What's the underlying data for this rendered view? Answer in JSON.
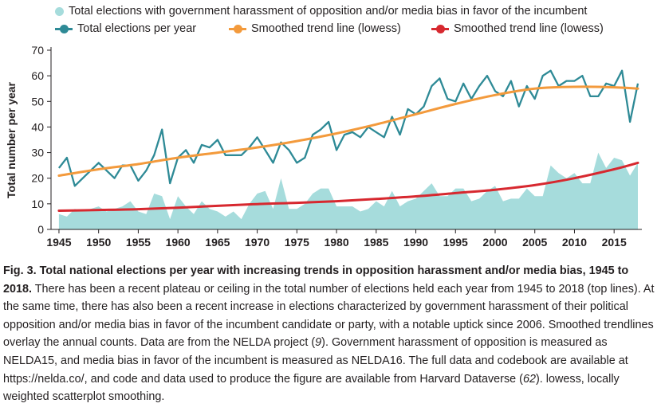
{
  "chart_data": {
    "type": "line",
    "ylabel": "Total number per year",
    "xlabel": "",
    "xlim": [
      1944,
      2018.5
    ],
    "ylim": [
      0,
      70
    ],
    "x_ticks": [
      1945,
      1950,
      1955,
      1960,
      1965,
      1970,
      1975,
      1980,
      1985,
      1990,
      1995,
      2000,
      2005,
      2010,
      2015
    ],
    "y_ticks": [
      0,
      10,
      20,
      30,
      40,
      50,
      60,
      70
    ],
    "legend": [
      {
        "label": "Total elections with government harassment of opposition and/or media bias in favor of the incumbent",
        "color": "#a6dcdc",
        "kind": "dot"
      },
      {
        "label": "Total elections per year",
        "color": "#2e8a96",
        "kind": "line-dot"
      },
      {
        "label": "Smoothed trend line (lowess)",
        "color": "#f39a3c",
        "kind": "line-dot"
      },
      {
        "label": "Smoothed trend line (lowess)",
        "color": "#d7282f",
        "kind": "line-dot"
      }
    ],
    "years": [
      1945,
      1946,
      1947,
      1948,
      1949,
      1950,
      1951,
      1952,
      1953,
      1954,
      1955,
      1956,
      1957,
      1958,
      1959,
      1960,
      1961,
      1962,
      1963,
      1964,
      1965,
      1966,
      1967,
      1968,
      1969,
      1970,
      1971,
      1972,
      1973,
      1974,
      1975,
      1976,
      1977,
      1978,
      1979,
      1980,
      1981,
      1982,
      1983,
      1984,
      1985,
      1986,
      1987,
      1988,
      1989,
      1990,
      1991,
      1992,
      1993,
      1994,
      1995,
      1996,
      1997,
      1998,
      1999,
      2000,
      2001,
      2002,
      2003,
      2004,
      2005,
      2006,
      2007,
      2008,
      2009,
      2010,
      2011,
      2012,
      2013,
      2014,
      2015,
      2016,
      2017,
      2018
    ],
    "series": [
      {
        "name": "Total elections per year",
        "color": "#2e8a96",
        "kind": "line",
        "values": [
          24,
          28,
          17,
          20,
          23,
          26,
          23,
          20,
          25,
          25,
          19,
          23,
          29,
          39,
          18,
          28,
          31,
          26,
          33,
          32,
          35,
          29,
          29,
          29,
          32,
          36,
          31,
          26,
          34,
          31,
          26,
          28,
          37,
          39,
          42,
          31,
          37,
          38,
          36,
          40,
          38,
          36,
          44,
          37,
          47,
          45,
          48,
          56,
          59,
          51,
          50,
          57,
          51,
          56,
          60,
          54,
          52,
          58,
          48,
          56,
          51,
          60,
          62,
          56,
          58,
          58,
          60,
          52,
          52,
          57,
          56,
          62,
          42,
          57
        ]
      },
      {
        "name": "Total elections with government harassment of opposition and/or media bias in favor of the incumbent",
        "color": "#a6dcdc",
        "kind": "area",
        "values": [
          6,
          5,
          8,
          7,
          8,
          9,
          7,
          8,
          9,
          11,
          7,
          6,
          14,
          13,
          4,
          13,
          9,
          6,
          11,
          8,
          7,
          5,
          7,
          4,
          10,
          14,
          15,
          8,
          20,
          8,
          8,
          10,
          14,
          16,
          16,
          9,
          9,
          9,
          7,
          8,
          11,
          9,
          15,
          9,
          11,
          12,
          15,
          18,
          13,
          13,
          16,
          16,
          11,
          12,
          15,
          17,
          11,
          12,
          12,
          16,
          13,
          13,
          25,
          22,
          20,
          22,
          18,
          18,
          30,
          24,
          28,
          27,
          21,
          26
        ]
      },
      {
        "name": "Smoothed trend line (lowess)",
        "color": "#f39a3c",
        "kind": "trend",
        "x": [
          1945,
          1950,
          1955,
          1960,
          1965,
          1970,
          1975,
          1980,
          1985,
          1990,
          1995,
          2000,
          2005,
          2010,
          2015,
          2018
        ],
        "values": [
          21,
          23.5,
          25.5,
          28,
          30,
          32,
          34.5,
          37.5,
          41,
          45,
          49,
          52.5,
          55,
          55.7,
          55.5,
          55
        ]
      },
      {
        "name": "Smoothed trend line (lowess)",
        "color": "#d7282f",
        "kind": "trend",
        "x": [
          1945,
          1950,
          1955,
          1960,
          1965,
          1970,
          1975,
          1980,
          1985,
          1990,
          1995,
          2000,
          2005,
          2010,
          2015,
          2018
        ],
        "values": [
          7.3,
          7.6,
          7.9,
          8.5,
          9.2,
          9.9,
          10.4,
          11,
          11.9,
          12.9,
          14.2,
          15.5,
          17.3,
          20,
          23.5,
          26
        ]
      }
    ]
  },
  "caption": {
    "bold": "Fig. 3. Total national elections per year with increasing trends in opposition harassment and/or media bias, 1945 to 2018.",
    "text1": " There has been a recent plateau or ceiling in the total number of elections held each year from 1945 to 2018 (top lines). At the same time, there has also been a recent increase in elections characterized by government harassment of their political opposition and/or media bias in favor of the incumbent candidate or party, with a notable uptick since 2006. Smoothed trendlines overlay the annual counts. Data are from the NELDA project (",
    "ref1": "9",
    "text2": "). Government harassment of opposition is measured as NELDA15, and media bias in favor of the incumbent is measured as NELDA16. The full data and codebook are available at https://nelda.co/, and code and data used to produce the figure are available from Harvard Dataverse (",
    "ref2": "62",
    "text3": "). lowess, locally weighted scatterplot smoothing."
  }
}
